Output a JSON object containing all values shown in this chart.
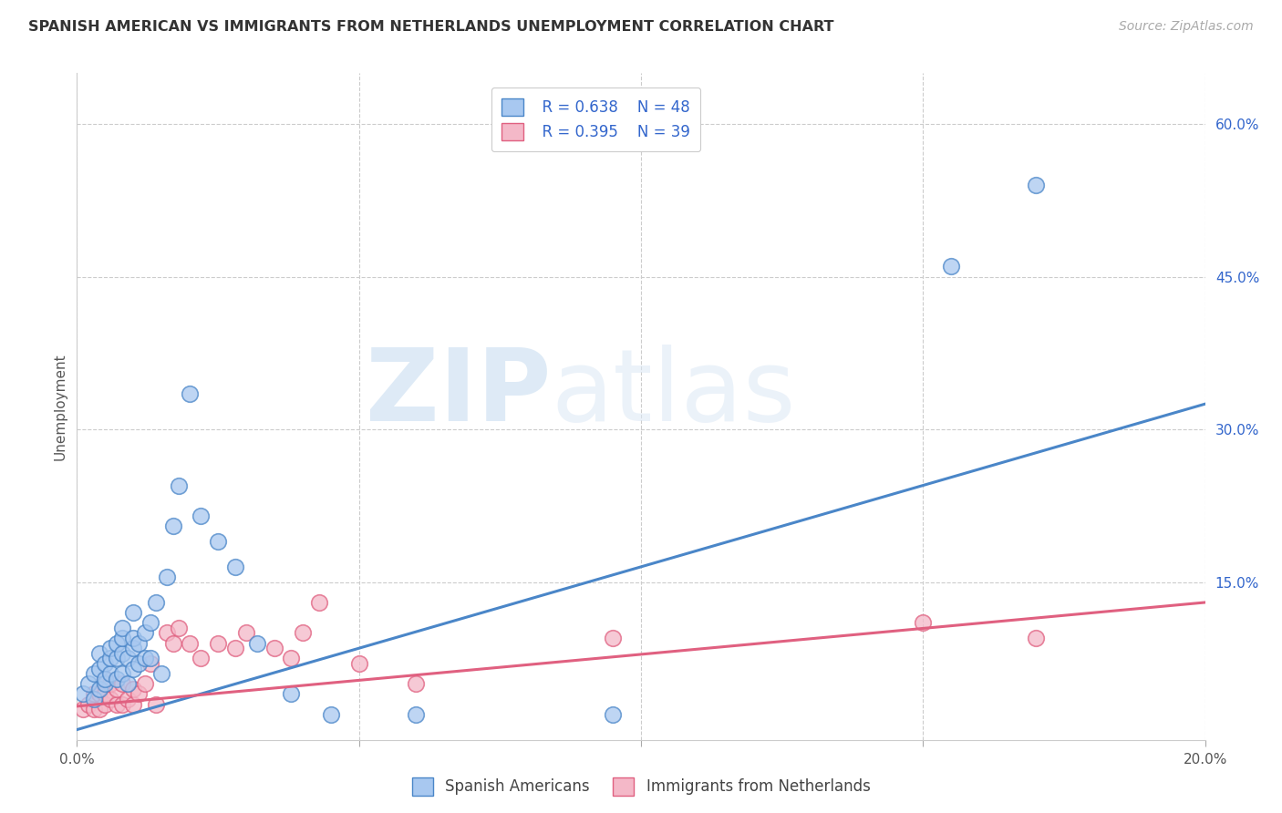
{
  "title": "SPANISH AMERICAN VS IMMIGRANTS FROM NETHERLANDS UNEMPLOYMENT CORRELATION CHART",
  "source": "Source: ZipAtlas.com",
  "ylabel": "Unemployment",
  "xlim": [
    0.0,
    0.2
  ],
  "ylim": [
    -0.005,
    0.65
  ],
  "xticks": [
    0.0,
    0.05,
    0.1,
    0.15,
    0.2
  ],
  "xticklabels": [
    "0.0%",
    "",
    "",
    "",
    "20.0%"
  ],
  "yticks_right": [
    0.0,
    0.15,
    0.3,
    0.45,
    0.6
  ],
  "ytick_labels_right": [
    "",
    "15.0%",
    "30.0%",
    "45.0%",
    "60.0%"
  ],
  "legend1_r": "R = 0.638",
  "legend1_n": "N = 48",
  "legend2_r": "R = 0.395",
  "legend2_n": "N = 39",
  "legend_bottom": [
    "Spanish Americans",
    "Immigrants from Netherlands"
  ],
  "blue_color": "#a8c8f0",
  "pink_color": "#f4b8c8",
  "line_blue": "#4a86c8",
  "line_pink": "#e06080",
  "text_color": "#3366cc",
  "watermark_zip": "ZIP",
  "watermark_atlas": "atlas",
  "blue_scatter_x": [
    0.001,
    0.002,
    0.003,
    0.003,
    0.004,
    0.004,
    0.004,
    0.005,
    0.005,
    0.005,
    0.006,
    0.006,
    0.006,
    0.007,
    0.007,
    0.007,
    0.008,
    0.008,
    0.008,
    0.008,
    0.009,
    0.009,
    0.01,
    0.01,
    0.01,
    0.01,
    0.011,
    0.011,
    0.012,
    0.012,
    0.013,
    0.013,
    0.014,
    0.015,
    0.016,
    0.017,
    0.018,
    0.02,
    0.022,
    0.025,
    0.028,
    0.032,
    0.038,
    0.045,
    0.06,
    0.095,
    0.155,
    0.17
  ],
  "blue_scatter_y": [
    0.04,
    0.05,
    0.035,
    0.06,
    0.045,
    0.065,
    0.08,
    0.05,
    0.07,
    0.055,
    0.06,
    0.075,
    0.085,
    0.055,
    0.075,
    0.09,
    0.06,
    0.08,
    0.095,
    0.105,
    0.05,
    0.075,
    0.065,
    0.085,
    0.095,
    0.12,
    0.07,
    0.09,
    0.075,
    0.1,
    0.075,
    0.11,
    0.13,
    0.06,
    0.155,
    0.205,
    0.245,
    0.335,
    0.215,
    0.19,
    0.165,
    0.09,
    0.04,
    0.02,
    0.02,
    0.02,
    0.46,
    0.54
  ],
  "pink_scatter_x": [
    0.001,
    0.002,
    0.003,
    0.003,
    0.004,
    0.004,
    0.005,
    0.005,
    0.005,
    0.006,
    0.006,
    0.007,
    0.007,
    0.008,
    0.008,
    0.009,
    0.01,
    0.01,
    0.011,
    0.012,
    0.013,
    0.014,
    0.016,
    0.017,
    0.018,
    0.02,
    0.022,
    0.025,
    0.028,
    0.03,
    0.035,
    0.038,
    0.04,
    0.043,
    0.05,
    0.06,
    0.095,
    0.15,
    0.17
  ],
  "pink_scatter_y": [
    0.025,
    0.03,
    0.025,
    0.04,
    0.025,
    0.04,
    0.03,
    0.04,
    0.055,
    0.035,
    0.05,
    0.03,
    0.045,
    0.03,
    0.05,
    0.035,
    0.03,
    0.045,
    0.04,
    0.05,
    0.07,
    0.03,
    0.1,
    0.09,
    0.105,
    0.09,
    0.075,
    0.09,
    0.085,
    0.1,
    0.085,
    0.075,
    0.1,
    0.13,
    0.07,
    0.05,
    0.095,
    0.11,
    0.095
  ],
  "blue_line_x": [
    0.0,
    0.2
  ],
  "blue_line_y": [
    0.005,
    0.325
  ],
  "pink_line_x": [
    0.0,
    0.2
  ],
  "pink_line_y": [
    0.028,
    0.13
  ]
}
